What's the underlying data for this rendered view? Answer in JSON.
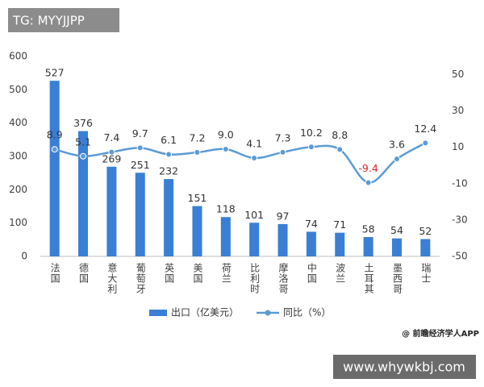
{
  "chart_data": {
    "type": "bar-line",
    "categories": [
      "法国",
      "德国",
      "意大利",
      "葡萄牙",
      "英国",
      "美国",
      "荷兰",
      "比利时",
      "摩洛哥",
      "中国",
      "波兰",
      "土耳其",
      "墨西哥",
      "瑞士"
    ],
    "series": [
      {
        "name": "出口（亿美元）",
        "type": "bar",
        "color": "#3a7fd5",
        "values": [
          527,
          376,
          269,
          251,
          232,
          151,
          118,
          101,
          97,
          74,
          71,
          58,
          54,
          52
        ]
      },
      {
        "name": "同比（%）",
        "type": "line",
        "axis": "y2",
        "color": "#5b9bd5",
        "values": [
          8.9,
          5.1,
          7.4,
          9.7,
          6.1,
          7.2,
          9.0,
          4.1,
          7.3,
          10.2,
          8.8,
          -9.4,
          3.6,
          12.4
        ],
        "value_labels": [
          "8.9",
          "5.1",
          "7.4",
          "9.7",
          "6.1",
          "7.2",
          "9.0",
          "4.1",
          "7.3",
          "10.2",
          "8.8",
          "-9.4",
          "3.6",
          "12.4"
        ]
      }
    ],
    "ylim": [
      0,
      600
    ],
    "yticks": [
      0,
      100,
      200,
      300,
      400,
      500,
      600
    ],
    "y2lim": [
      -50,
      60
    ],
    "y2ticks": [
      -50,
      -30,
      -10,
      10,
      30,
      50
    ],
    "negative_label_color": "#e02020",
    "annotations": [
      "TG: MYYJJPP",
      "@ 前瞻经济学人APP",
      "www.whywkbj.com"
    ]
  }
}
